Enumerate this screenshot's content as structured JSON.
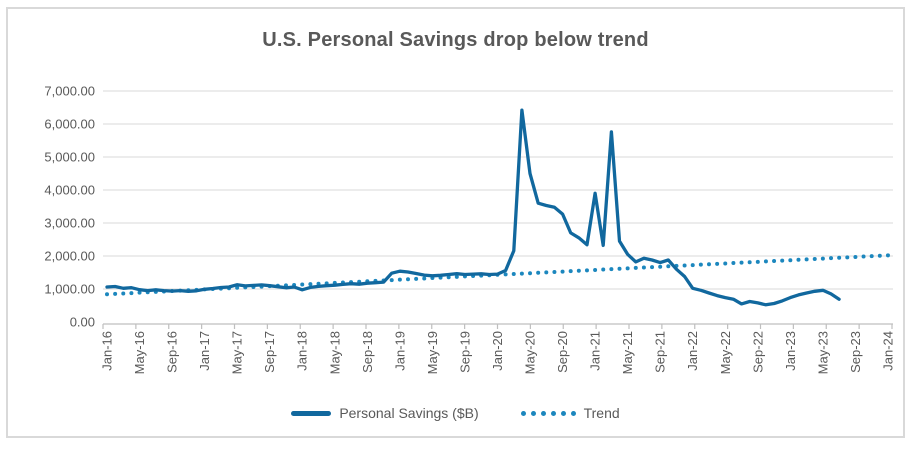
{
  "chart": {
    "title": "U.S. Personal Savings drop below trend",
    "legend": [
      {
        "label": "Personal Savings ($B)",
        "swatch": "solid-line"
      },
      {
        "label": "Trend",
        "swatch": "dotted-line"
      }
    ]
  },
  "colors": {
    "savings_line": "#11689E",
    "trend_dots": "#1C87BE",
    "title_text": "#595959",
    "axis_text": "#595959",
    "gridline": "#D9D9D9",
    "axis_line": "#BFBFBF",
    "frame_border": "#D9D9D9",
    "background": "#FFFFFF"
  },
  "chart_data": {
    "type": "line",
    "title": "U.S. Personal Savings drop below trend",
    "xlabel": "",
    "ylabel": "",
    "x_frequency": "monthly",
    "x_range": [
      "Jan-16",
      "Jan-24"
    ],
    "x_tick_labels": [
      "Jan-16",
      "May-16",
      "Sep-16",
      "Jan-17",
      "May-17",
      "Sep-17",
      "Jan-18",
      "May-18",
      "Sep-18",
      "Jan-19",
      "May-19",
      "Sep-19",
      "Jan-20",
      "May-20",
      "Sep-20",
      "Jan-21",
      "May-21",
      "Sep-21",
      "Jan-22",
      "May-22",
      "Sep-22",
      "Jan-23",
      "May-23",
      "Sep-23",
      "Jan-24"
    ],
    "x_tick_rotation": -90,
    "ylim": [
      0,
      7000
    ],
    "y_ticks": [
      0,
      1000,
      2000,
      3000,
      4000,
      5000,
      6000,
      7000
    ],
    "y_tick_labels": [
      "0.00",
      "1,000.00",
      "2,000.00",
      "3,000.00",
      "4,000.00",
      "5,000.00",
      "6,000.00",
      "7,000.00"
    ],
    "grid": "horizontal",
    "legend_position": "bottom",
    "series": [
      {
        "name": "Personal Savings ($B)",
        "style": "solid",
        "color": "#11689E",
        "start_month": "Jan-16",
        "end_month": "Jul-23",
        "values": [
          1060,
          1075,
          1020,
          1040,
          980,
          950,
          975,
          950,
          935,
          950,
          930,
          945,
          990,
          1015,
          1045,
          1060,
          1130,
          1095,
          1110,
          1125,
          1100,
          1070,
          1035,
          1060,
          975,
          1050,
          1080,
          1100,
          1115,
          1140,
          1160,
          1145,
          1175,
          1190,
          1210,
          1480,
          1540,
          1515,
          1470,
          1420,
          1400,
          1415,
          1440,
          1465,
          1440,
          1450,
          1460,
          1440,
          1450,
          1560,
          2160,
          6420,
          4500,
          3600,
          3530,
          3480,
          3270,
          2700,
          2550,
          2340,
          3900,
          2320,
          5760,
          2450,
          2050,
          1820,
          1930,
          1880,
          1800,
          1880,
          1600,
          1380,
          1020,
          960,
          880,
          800,
          740,
          690,
          550,
          620,
          580,
          520,
          560,
          640,
          740,
          820,
          880,
          930,
          960,
          850,
          690
        ]
      },
      {
        "name": "Trend",
        "style": "dotted",
        "shape": "linear",
        "color": "#1C87BE",
        "start_month": "Jan-16",
        "end_month": "Jan-24",
        "start_value": 840,
        "end_value": 2020
      }
    ]
  }
}
